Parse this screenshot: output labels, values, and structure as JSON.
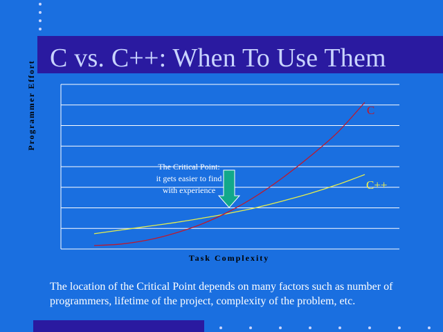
{
  "slide": {
    "title": "C vs. C++: When To Use Them",
    "footnote": "The location of the Critical Point depends on many factors such as number of programmers, lifetime of the project, complexity of the problem, etc.",
    "colors": {
      "background": "#1a6fe0",
      "band": "#2a1aa0",
      "title": "#c9d4ff",
      "c_line": "#c0182a",
      "cpp_line": "#e8ef4a",
      "arrow": "#12a88a"
    }
  },
  "chart_data": {
    "type": "line",
    "title": "",
    "xlabel": "Task Complexity",
    "ylabel": "Programmer Effort",
    "grid": true,
    "gridlines": 9,
    "series": [
      {
        "name": "C",
        "x": [
          0,
          1,
          2,
          3,
          4,
          5,
          6,
          7,
          8,
          9,
          10
        ],
        "y": [
          0.0,
          0.12,
          0.45,
          1.0,
          1.75,
          2.75,
          4.0,
          5.5,
          7.2,
          9.1,
          11.5
        ]
      },
      {
        "name": "C++",
        "x": [
          0,
          1,
          2,
          3,
          4,
          5,
          6,
          7,
          8,
          9,
          10
        ],
        "y": [
          0.95,
          1.25,
          1.55,
          1.85,
          2.2,
          2.6,
          3.05,
          3.6,
          4.2,
          4.9,
          5.7
        ]
      }
    ],
    "annotations": [
      {
        "lines": [
          "The Critical Point:",
          "it gets easier to find",
          "with experience"
        ]
      }
    ]
  }
}
